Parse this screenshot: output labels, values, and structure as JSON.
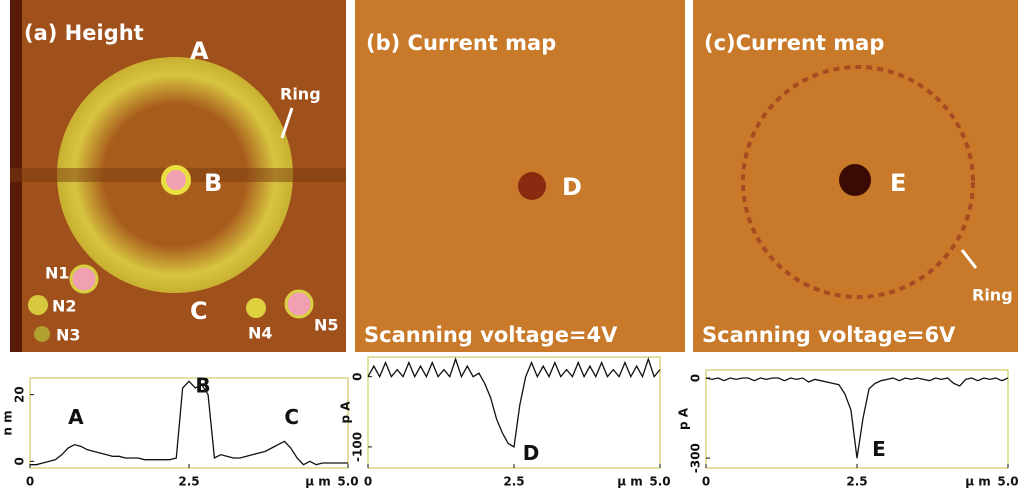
{
  "panels": [
    {
      "title": "(a) Height",
      "labels": [
        "A",
        "Ring",
        "B",
        "N1",
        "N2",
        "N3",
        "C",
        "N4",
        "N5"
      ]
    },
    {
      "title": "(b) Current map",
      "labels": [
        "D"
      ],
      "caption": "Scanning voltage=4V"
    },
    {
      "title": "(c)Current map",
      "labels": [
        "E",
        "Ring"
      ],
      "caption": "Scanning voltage=6V"
    }
  ],
  "chart_data": [
    {
      "type": "line",
      "color": "#111",
      "y_label": "n m",
      "x_label": "μ m",
      "annotations": [
        "A",
        "B",
        "C"
      ],
      "xlim": [
        0,
        5
      ],
      "xticks": [
        0,
        2.5,
        {
          "value": 5,
          "label": "5.0"
        }
      ],
      "ylim": [
        -2,
        25
      ],
      "yticks": [
        0,
        20
      ],
      "x": [
        0,
        0.1,
        0.2,
        0.3,
        0.4,
        0.5,
        0.6,
        0.7,
        0.8,
        0.9,
        1,
        1.1,
        1.2,
        1.3,
        1.4,
        1.5,
        1.6,
        1.7,
        1.8,
        1.9,
        2,
        2.1,
        2.2,
        2.3,
        2.4,
        2.5,
        2.6,
        2.7,
        2.8,
        2.9,
        3,
        3.1,
        3.2,
        3.3,
        3.4,
        3.5,
        3.6,
        3.7,
        3.8,
        3.9,
        4,
        4.1,
        4.2,
        4.3,
        4.4,
        4.5,
        4.6,
        4.7,
        4.8,
        4.9,
        5
      ],
      "values": [
        -1,
        -1,
        -0.5,
        0,
        0.5,
        2,
        4,
        5,
        4.5,
        3.5,
        3,
        2.5,
        2,
        1.5,
        1.5,
        1,
        1,
        1,
        0.5,
        0.5,
        0.5,
        0.5,
        0.5,
        1,
        22,
        24,
        22,
        23,
        20,
        1,
        2,
        1.5,
        1,
        1,
        1.5,
        2,
        2.5,
        3,
        4,
        5,
        6,
        4,
        1,
        -1,
        0,
        -1,
        -0.5,
        -0.5,
        -0.5,
        -0.5,
        -0.5
      ]
    },
    {
      "type": "line",
      "color": "#111",
      "y_label": "p A",
      "x_label": "μ m",
      "annotations": [
        "D"
      ],
      "xlim": [
        0,
        5
      ],
      "xticks": [
        0,
        2.5,
        {
          "value": 5,
          "label": "5.0"
        }
      ],
      "ylim": [
        -130,
        28
      ],
      "yticks": [
        0,
        -100
      ],
      "x": [
        0,
        0.1,
        0.2,
        0.3,
        0.4,
        0.5,
        0.6,
        0.7,
        0.8,
        0.9,
        1,
        1.1,
        1.2,
        1.3,
        1.4,
        1.5,
        1.6,
        1.7,
        1.8,
        1.9,
        2,
        2.1,
        2.2,
        2.3,
        2.4,
        2.5,
        2.6,
        2.7,
        2.8,
        2.9,
        3,
        3.1,
        3.2,
        3.3,
        3.4,
        3.5,
        3.6,
        3.7,
        3.8,
        3.9,
        4,
        4.1,
        4.2,
        4.3,
        4.4,
        4.5,
        4.6,
        4.7,
        4.8,
        4.9,
        5
      ],
      "values": [
        0,
        15,
        0,
        20,
        0,
        10,
        0,
        20,
        0,
        15,
        0,
        20,
        0,
        10,
        0,
        25,
        0,
        15,
        0,
        5,
        -10,
        -30,
        -60,
        -80,
        -95,
        -100,
        -40,
        0,
        20,
        0,
        15,
        0,
        20,
        0,
        10,
        0,
        20,
        0,
        15,
        0,
        20,
        0,
        10,
        0,
        20,
        0,
        15,
        0,
        25,
        0,
        10
      ]
    },
    {
      "type": "line",
      "color": "#111",
      "y_label": "p A",
      "x_label": "μ m",
      "annotations": [
        "E"
      ],
      "xlim": [
        0,
        5
      ],
      "xticks": [
        0,
        2.5,
        {
          "value": 5,
          "label": "5.0"
        }
      ],
      "ylim": [
        -337,
        30
      ],
      "yticks": [
        0,
        -300
      ],
      "x": [
        0,
        0.1,
        0.2,
        0.3,
        0.4,
        0.5,
        0.6,
        0.7,
        0.8,
        0.9,
        1,
        1.1,
        1.2,
        1.3,
        1.4,
        1.5,
        1.6,
        1.7,
        1.8,
        1.9,
        2,
        2.1,
        2.2,
        2.3,
        2.4,
        2.5,
        2.6,
        2.7,
        2.8,
        2.9,
        3,
        3.1,
        3.2,
        3.3,
        3.4,
        3.5,
        3.6,
        3.7,
        3.8,
        3.9,
        4,
        4.1,
        4.2,
        4.3,
        4.4,
        4.5,
        4.6,
        4.7,
        4.8,
        4.9,
        5
      ],
      "values": [
        0,
        -5,
        0,
        -10,
        0,
        -5,
        0,
        0,
        -10,
        0,
        -5,
        0,
        0,
        -10,
        0,
        -5,
        0,
        -15,
        -5,
        -10,
        -15,
        -20,
        -25,
        -60,
        -120,
        -300,
        -150,
        -40,
        -20,
        -10,
        -5,
        0,
        -10,
        0,
        -5,
        0,
        -5,
        -10,
        0,
        -5,
        0,
        -20,
        -30,
        -5,
        0,
        -10,
        0,
        -5,
        0,
        -10,
        0
      ]
    }
  ]
}
